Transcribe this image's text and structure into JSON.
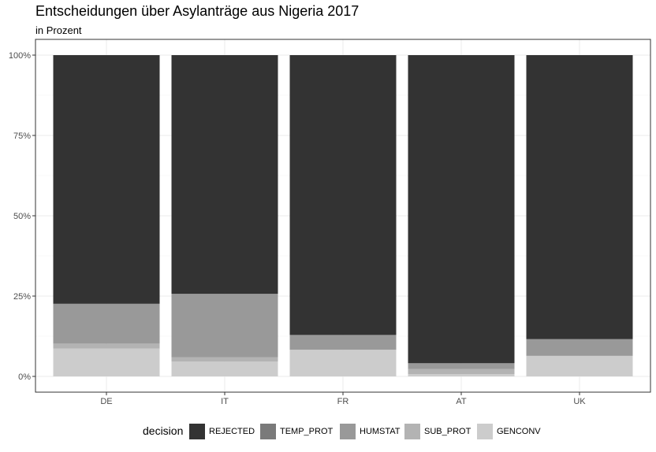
{
  "title": "Entscheidungen über Asylanträge aus  Nigeria  2017",
  "subtitle": "in Prozent",
  "chart_data": {
    "type": "bar",
    "stacked": true,
    "categories": [
      "DE",
      "IT",
      "FR",
      "AT",
      "UK"
    ],
    "yticks": [
      "0%",
      "25%",
      "50%",
      "75%",
      "100%"
    ],
    "ylim": [
      0,
      100
    ],
    "grid": true,
    "legend_placement": "bottom",
    "legend_title": "decision",
    "series": [
      {
        "name": "GENCONV",
        "color": "#cccccc",
        "values": [
          8.7,
          4.6,
          8.3,
          0.7,
          6.4
        ]
      },
      {
        "name": "SUB_PROT",
        "color": "#b3b3b3",
        "values": [
          1.5,
          1.4,
          0.0,
          1.6,
          0.0
        ]
      },
      {
        "name": "HUMSTAT",
        "color": "#999999",
        "values": [
          12.4,
          19.7,
          4.6,
          1.8,
          5.2
        ]
      },
      {
        "name": "TEMP_PROT",
        "color": "#7a7a7a",
        "values": [
          0.0,
          0.0,
          0.0,
          0.0,
          0.0
        ]
      },
      {
        "name": "REJECTED",
        "color": "#333333",
        "values": [
          77.4,
          74.3,
          87.1,
          95.9,
          88.4
        ]
      }
    ],
    "legend_order": [
      "REJECTED",
      "TEMP_PROT",
      "HUMSTAT",
      "SUB_PROT",
      "GENCONV"
    ]
  }
}
